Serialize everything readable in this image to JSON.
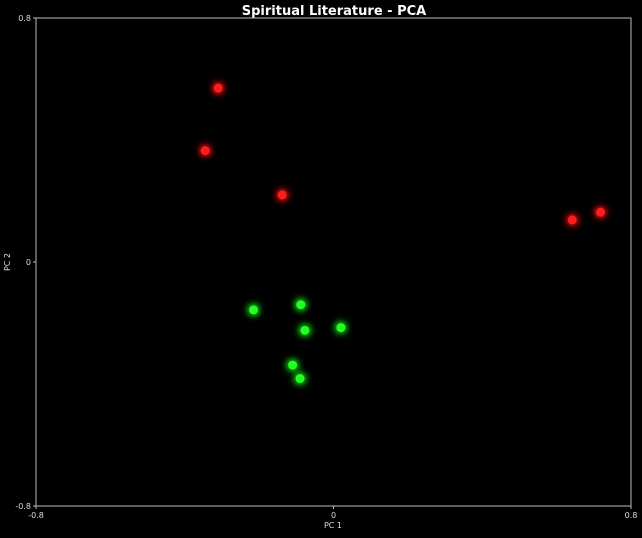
{
  "chart_data": {
    "type": "scatter",
    "title": "Spiritual Literature - PCA",
    "xlabel": "PC 1",
    "ylabel": "PC 2",
    "xlim": [
      -0.8,
      0.8
    ],
    "ylim": [
      -0.8,
      0.8
    ],
    "xticks": [
      {
        "value": -0.8,
        "label": "-0.8"
      },
      {
        "value": 0,
        "label": "0"
      },
      {
        "value": 0.8,
        "label": "0.8"
      }
    ],
    "yticks": [
      {
        "value": -0.8,
        "label": "-0.8"
      },
      {
        "value": 0,
        "label": "0"
      },
      {
        "value": 0.8,
        "label": "0.8"
      }
    ],
    "grid": false,
    "legend": "none",
    "series": [
      {
        "color": "#ff1a1a",
        "points": [
          {
            "x": -0.31,
            "y": 0.57
          },
          {
            "x": -0.345,
            "y": 0.365
          },
          {
            "x": -0.138,
            "y": 0.22
          },
          {
            "x": 0.642,
            "y": 0.138
          },
          {
            "x": 0.718,
            "y": 0.163
          }
        ]
      },
      {
        "color": "#22ff22",
        "points": [
          {
            "x": -0.215,
            "y": -0.157
          },
          {
            "x": -0.088,
            "y": -0.14
          },
          {
            "x": -0.077,
            "y": -0.224
          },
          {
            "x": 0.02,
            "y": -0.215
          },
          {
            "x": -0.11,
            "y": -0.338
          },
          {
            "x": -0.09,
            "y": -0.382
          }
        ]
      }
    ]
  }
}
